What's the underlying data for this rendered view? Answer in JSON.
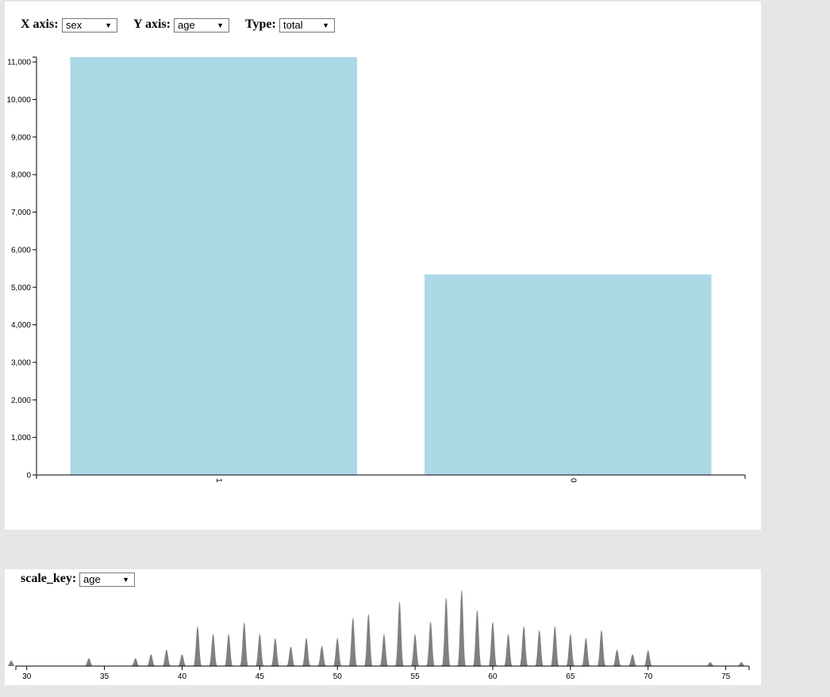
{
  "controls": {
    "x_axis": {
      "label": "X axis:",
      "value": "sex"
    },
    "y_axis": {
      "label": "Y axis:",
      "value": "age"
    },
    "type": {
      "label": "Type:",
      "value": "total"
    },
    "scale_key": {
      "label": "scale_key:",
      "value": "age"
    }
  },
  "icons": {
    "dropdown": "triangle-down-icon"
  },
  "colors": {
    "bar": "#add8e6",
    "density": "#808080",
    "axis": "#000000"
  },
  "chart_data": [
    {
      "type": "bar",
      "categories": [
        "1",
        "0"
      ],
      "values": [
        11130,
        5340
      ],
      "ylim": [
        0,
        11130
      ],
      "yticks": [
        0,
        1000,
        2000,
        3000,
        4000,
        5000,
        6000,
        7000,
        8000,
        9000,
        10000,
        11000
      ],
      "ytick_labels": [
        "0",
        "1,000",
        "2,000",
        "3,000",
        "4,000",
        "5,000",
        "6,000",
        "7,000",
        "8,000",
        "9,000",
        "10,000",
        "11,000"
      ],
      "xlabel": "",
      "ylabel": ""
    },
    {
      "type": "area",
      "xlim": [
        29.3,
        76.5
      ],
      "xticks": [
        30,
        35,
        40,
        45,
        50,
        55,
        60,
        65,
        70,
        75
      ],
      "xtick_labels": [
        "30",
        "35",
        "40",
        "45",
        "50",
        "55",
        "60",
        "65",
        "70",
        "75"
      ],
      "x": [
        29,
        34,
        37,
        38,
        39,
        40,
        41,
        42,
        43,
        44,
        45,
        46,
        47,
        48,
        49,
        50,
        51,
        52,
        53,
        54,
        55,
        56,
        57,
        58,
        59,
        60,
        61,
        62,
        63,
        64,
        65,
        66,
        67,
        68,
        69,
        70,
        74,
        76
      ],
      "y": [
        7,
        10,
        10,
        15,
        21,
        15,
        51,
        41,
        41,
        56,
        41,
        36,
        25,
        36,
        26,
        36,
        62,
        67,
        41,
        83,
        41,
        57,
        88,
        98,
        72,
        57,
        41,
        51,
        46,
        51,
        41,
        36,
        46,
        21,
        15,
        20,
        5,
        5
      ],
      "ylim": [
        0,
        100
      ]
    }
  ]
}
